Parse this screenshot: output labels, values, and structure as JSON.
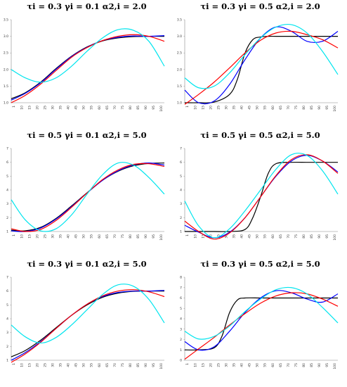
{
  "chart_data": [
    {
      "type": "line",
      "title": "τi = 0.3  γi = 0.1  α2,i = 2.0",
      "yticks": [
        "1.0",
        "1.5",
        "2.0",
        "2.5",
        "3.0",
        "3.5"
      ],
      "ylim": [
        1.0,
        3.5
      ],
      "xticks": [
        "1",
        "10",
        "15",
        "20",
        "25",
        "30",
        "35",
        "40",
        "45",
        "50",
        "55",
        "60",
        "65",
        "70",
        "75",
        "80",
        "85",
        "90",
        "95",
        "100"
      ],
      "xlim": [
        1,
        100
      ],
      "series": [
        {
          "color": "#000000",
          "x": [
            1,
            10,
            20,
            30,
            40,
            50,
            60,
            70,
            80,
            90,
            100
          ],
          "values": [
            1.12,
            1.3,
            1.62,
            2.03,
            2.4,
            2.68,
            2.86,
            2.95,
            2.99,
            3.0,
            3.0
          ]
        },
        {
          "color": "#0000ff",
          "x": [
            1,
            10,
            20,
            30,
            40,
            50,
            60,
            70,
            80,
            90,
            100
          ],
          "values": [
            1.08,
            1.28,
            1.6,
            2.01,
            2.39,
            2.67,
            2.87,
            2.97,
            3.01,
            3.0,
            3.02
          ]
        },
        {
          "color": "#ff0000",
          "x": [
            1,
            10,
            20,
            30,
            40,
            50,
            60,
            70,
            80,
            90,
            100
          ],
          "values": [
            1.0,
            1.22,
            1.56,
            1.97,
            2.37,
            2.66,
            2.87,
            3.0,
            3.05,
            3.0,
            2.85
          ]
        },
        {
          "color": "#00e5ee",
          "x": [
            1,
            10,
            20,
            30,
            40,
            50,
            60,
            70,
            80,
            90,
            100
          ],
          "values": [
            2.0,
            1.75,
            1.62,
            1.75,
            2.1,
            2.55,
            2.95,
            3.2,
            3.18,
            2.85,
            2.1
          ]
        }
      ]
    },
    {
      "type": "line",
      "title": "τi = 0.3  γi = 0.5  α2,i = 2.0",
      "yticks": [
        "1.0",
        "1.5",
        "2.0",
        "2.5",
        "3.0",
        "3.5"
      ],
      "ylim": [
        1.0,
        3.5
      ],
      "xticks": [
        "1",
        "10",
        "15",
        "20",
        "25",
        "30",
        "35",
        "40",
        "45",
        "50",
        "55",
        "60",
        "65",
        "70",
        "75",
        "80",
        "85",
        "90",
        "95",
        "100"
      ],
      "xlim": [
        1,
        100
      ],
      "series": [
        {
          "color": "#000000",
          "x": [
            1,
            10,
            20,
            30,
            35,
            40,
            45,
            50,
            55,
            60,
            70,
            80,
            90,
            100
          ],
          "values": [
            1.0,
            1.0,
            1.02,
            1.25,
            1.7,
            2.5,
            2.9,
            2.98,
            3.0,
            3.0,
            3.0,
            3.0,
            3.0,
            3.0
          ]
        },
        {
          "color": "#0000ff",
          "x": [
            1,
            10,
            20,
            30,
            40,
            50,
            60,
            70,
            80,
            90,
            100
          ],
          "values": [
            1.38,
            1.0,
            1.05,
            1.55,
            2.3,
            2.95,
            3.28,
            3.15,
            2.85,
            2.85,
            3.15
          ]
        },
        {
          "color": "#ff0000",
          "x": [
            1,
            10,
            20,
            30,
            40,
            50,
            60,
            70,
            80,
            90,
            100
          ],
          "values": [
            0.95,
            1.25,
            1.62,
            2.05,
            2.5,
            2.88,
            3.1,
            3.15,
            3.05,
            2.9,
            2.65
          ]
        },
        {
          "color": "#00e5ee",
          "x": [
            1,
            10,
            20,
            30,
            40,
            50,
            60,
            70,
            80,
            90,
            100
          ],
          "values": [
            1.75,
            1.45,
            1.5,
            1.9,
            2.45,
            2.95,
            3.28,
            3.35,
            3.1,
            2.55,
            1.85
          ]
        }
      ]
    },
    {
      "type": "line",
      "title": "τi = 0.5  γi = 0.1  α2,i = 5.0",
      "yticks": [
        "1",
        "2",
        "3",
        "4",
        "5",
        "6",
        "7"
      ],
      "ylim": [
        1,
        7
      ],
      "xticks": [
        "1",
        "10",
        "15",
        "20",
        "25",
        "30",
        "35",
        "40",
        "45",
        "50",
        "55",
        "60",
        "65",
        "70",
        "75",
        "80",
        "85",
        "90",
        "95",
        "100"
      ],
      "xlim": [
        1,
        100
      ],
      "series": [
        {
          "color": "#000000",
          "x": [
            1,
            10,
            20,
            30,
            40,
            50,
            60,
            70,
            80,
            90,
            100
          ],
          "values": [
            1.1,
            1.05,
            1.3,
            1.95,
            2.85,
            3.8,
            4.7,
            5.35,
            5.75,
            5.92,
            5.95
          ]
        },
        {
          "color": "#0000ff",
          "x": [
            1,
            10,
            20,
            30,
            40,
            50,
            60,
            70,
            80,
            90,
            100
          ],
          "values": [
            1.05,
            1.0,
            1.25,
            1.9,
            2.8,
            3.78,
            4.7,
            5.38,
            5.8,
            5.95,
            5.8
          ]
        },
        {
          "color": "#ff0000",
          "x": [
            1,
            10,
            20,
            30,
            40,
            50,
            60,
            70,
            80,
            90,
            100
          ],
          "values": [
            1.2,
            1.0,
            1.15,
            1.8,
            2.75,
            3.78,
            4.75,
            5.45,
            5.85,
            5.9,
            5.7
          ]
        },
        {
          "color": "#00e5ee",
          "x": [
            1,
            10,
            20,
            30,
            40,
            50,
            60,
            70,
            80,
            90,
            100
          ],
          "values": [
            3.3,
            1.85,
            1.05,
            1.2,
            2.2,
            3.7,
            5.1,
            5.95,
            5.8,
            4.9,
            3.7
          ]
        }
      ]
    },
    {
      "type": "line",
      "title": "τi = 0.5  γi = 0.5  α2,i = 5.0",
      "yticks": [
        "1",
        "2",
        "3",
        "4",
        "5",
        "6",
        "7"
      ],
      "ylim": [
        1,
        7
      ],
      "xticks": [
        "1",
        "10",
        "15",
        "20",
        "25",
        "30",
        "35",
        "40",
        "45",
        "50",
        "55",
        "60",
        "65",
        "70",
        "75",
        "80",
        "85",
        "90",
        "95",
        "100"
      ],
      "xlim": [
        1,
        100
      ],
      "series": [
        {
          "color": "#000000",
          "x": [
            1,
            10,
            20,
            30,
            40,
            45,
            50,
            55,
            60,
            70,
            80,
            90,
            100
          ],
          "values": [
            1.0,
            1.0,
            1.0,
            1.0,
            1.15,
            2.0,
            3.5,
            5.2,
            5.9,
            6.0,
            6.0,
            6.0,
            6.0
          ]
        },
        {
          "color": "#0000ff",
          "x": [
            1,
            10,
            20,
            30,
            40,
            50,
            60,
            70,
            80,
            90,
            100
          ],
          "values": [
            1.45,
            0.95,
            0.55,
            0.95,
            2.0,
            3.5,
            5.0,
            6.1,
            6.5,
            6.1,
            5.3
          ]
        },
        {
          "color": "#ff0000",
          "x": [
            1,
            10,
            20,
            30,
            40,
            50,
            60,
            70,
            80,
            90,
            100
          ],
          "values": [
            1.75,
            1.0,
            0.45,
            0.9,
            2.0,
            3.5,
            5.05,
            6.2,
            6.55,
            6.1,
            5.2
          ]
        },
        {
          "color": "#00e5ee",
          "x": [
            1,
            10,
            20,
            30,
            40,
            50,
            60,
            70,
            80,
            90,
            100
          ],
          "values": [
            3.2,
            1.4,
            0.55,
            1.2,
            2.5,
            4.0,
            5.5,
            6.55,
            6.5,
            5.4,
            3.7
          ]
        }
      ]
    },
    {
      "type": "line",
      "title": "τi = 0.3  γi = 0.1  α2,i = 5.0",
      "yticks": [
        "1",
        "2",
        "3",
        "4",
        "5",
        "6",
        "7"
      ],
      "ylim": [
        1,
        7
      ],
      "xticks": [
        "1",
        "10",
        "15",
        "20",
        "25",
        "30",
        "35",
        "40",
        "45",
        "50",
        "55",
        "60",
        "65",
        "70",
        "75",
        "80",
        "85",
        "90",
        "95",
        "100"
      ],
      "xlim": [
        1,
        100
      ],
      "series": [
        {
          "color": "#000000",
          "x": [
            1,
            10,
            20,
            30,
            40,
            50,
            60,
            70,
            80,
            90,
            100
          ],
          "values": [
            1.25,
            1.7,
            2.45,
            3.35,
            4.25,
            5.0,
            5.55,
            5.85,
            5.98,
            6.0,
            6.0
          ]
        },
        {
          "color": "#0000ff",
          "x": [
            1,
            10,
            20,
            30,
            40,
            50,
            60,
            70,
            80,
            90,
            100
          ],
          "values": [
            1.0,
            1.55,
            2.35,
            3.3,
            4.25,
            5.05,
            5.6,
            5.9,
            6.0,
            6.0,
            6.05
          ]
        },
        {
          "color": "#ff0000",
          "x": [
            1,
            10,
            20,
            30,
            40,
            50,
            60,
            70,
            80,
            90,
            100
          ],
          "values": [
            0.85,
            1.45,
            2.3,
            3.3,
            4.25,
            5.05,
            5.65,
            6.0,
            6.1,
            5.95,
            5.6
          ]
        },
        {
          "color": "#00e5ee",
          "x": [
            1,
            10,
            20,
            30,
            40,
            50,
            60,
            70,
            80,
            90,
            100
          ],
          "values": [
            3.55,
            2.7,
            2.25,
            2.65,
            3.55,
            4.65,
            5.75,
            6.45,
            6.35,
            5.4,
            3.7
          ]
        }
      ]
    },
    {
      "type": "line",
      "title": "τi = 0.3  γi = 0.5  α2,i = 5.0",
      "yticks": [
        "0",
        "1",
        "2",
        "3",
        "4",
        "5",
        "6",
        "7",
        "8"
      ],
      "ylim": [
        0,
        8
      ],
      "xticks": [
        "1",
        "10",
        "15",
        "20",
        "25",
        "30",
        "35",
        "40",
        "45",
        "50",
        "55",
        "60",
        "65",
        "70",
        "75",
        "80",
        "85",
        "90",
        "95",
        "100"
      ],
      "xlim": [
        1,
        100
      ],
      "series": [
        {
          "color": "#000000",
          "x": [
            1,
            10,
            20,
            25,
            30,
            35,
            40,
            50,
            60,
            70,
            80,
            90,
            100
          ],
          "values": [
            1.0,
            1.0,
            1.2,
            2.3,
            4.6,
            5.8,
            6.0,
            6.0,
            6.0,
            6.0,
            6.0,
            6.0,
            6.0
          ]
        },
        {
          "color": "#0000ff",
          "x": [
            1,
            10,
            20,
            30,
            40,
            50,
            60,
            70,
            80,
            90,
            100
          ],
          "values": [
            1.8,
            1.0,
            1.3,
            2.8,
            4.6,
            6.0,
            6.7,
            6.5,
            5.9,
            5.6,
            6.4
          ]
        },
        {
          "color": "#ff0000",
          "x": [
            1,
            10,
            20,
            30,
            40,
            50,
            60,
            70,
            80,
            90,
            100
          ],
          "values": [
            0.1,
            1.1,
            2.2,
            3.4,
            4.5,
            5.5,
            6.2,
            6.5,
            6.4,
            5.9,
            5.2
          ]
        },
        {
          "color": "#00e5ee",
          "x": [
            1,
            10,
            20,
            30,
            40,
            50,
            60,
            70,
            80,
            90,
            100
          ],
          "values": [
            2.8,
            2.05,
            2.3,
            3.3,
            4.7,
            5.9,
            6.8,
            7.0,
            6.4,
            5.1,
            3.6
          ]
        }
      ]
    }
  ]
}
